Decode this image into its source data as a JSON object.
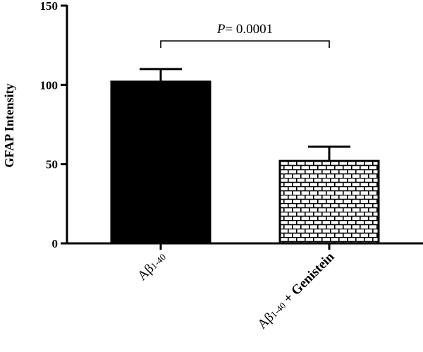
{
  "chart_data": {
    "type": "bar",
    "categories": [
      {
        "prefix": "A",
        "beta": "β",
        "sub": "1-40",
        "suffix": ""
      },
      {
        "prefix": "A",
        "beta": "β",
        "sub": "1-40",
        "suffix": " + Genistein"
      }
    ],
    "values": [
      102,
      52
    ],
    "errors": [
      8,
      9
    ],
    "ylabel": "GFAP Intensity",
    "ylim": [
      0,
      150
    ],
    "yticks": [
      0,
      50,
      100,
      150
    ],
    "fills": [
      "solid",
      "brick"
    ],
    "bar_color": "#000000",
    "annotation": {
      "italic": "P",
      "text": "= 0.0001",
      "between": [
        0,
        1
      ]
    }
  }
}
